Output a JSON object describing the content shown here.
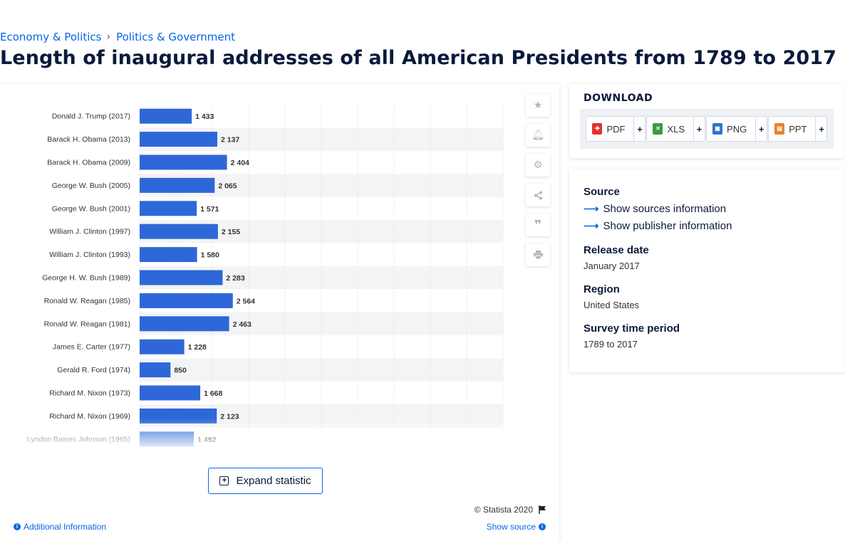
{
  "breadcrumb": {
    "items": [
      "Economy & Politics",
      "Politics & Government"
    ],
    "separator": "›"
  },
  "page_title": "Length of inaugural addresses of all American Presidents from 1789 to 2017",
  "toolbar": {
    "icons": [
      "star-icon",
      "bell-icon",
      "gear-icon",
      "share-icon",
      "quote-icon",
      "print-icon"
    ]
  },
  "chart_footer": {
    "expand_label": "Expand statistic",
    "copyright": "© Statista 2020",
    "additional_info": "Additional Information",
    "show_source": "Show source"
  },
  "download": {
    "title": "DOWNLOAD",
    "buttons": [
      {
        "label": "PDF",
        "plus": "+",
        "color": "#e0322d"
      },
      {
        "label": "XLS",
        "plus": "+",
        "color": "#3a9a3e"
      },
      {
        "label": "PNG",
        "plus": "+",
        "color": "#2d73c9"
      },
      {
        "label": "PPT",
        "plus": "+",
        "color": "#e8842c"
      }
    ]
  },
  "info": {
    "source_heading": "Source",
    "sources_link": "Show sources information",
    "publisher_link": "Show publisher information",
    "release_heading": "Release date",
    "release_value": "January 2017",
    "region_heading": "Region",
    "region_value": "United States",
    "period_heading": "Survey time period",
    "period_value": "1789 to 2017"
  },
  "chart_data": {
    "type": "bar",
    "orientation": "horizontal",
    "categories": [
      "Donald J. Trump (2017)",
      "Barack H. Obama (2013)",
      "Barack H. Obama (2009)",
      "George W. Bush (2005)",
      "George W. Bush (2001)",
      "William J. Clinton (1997)",
      "William J. Clinton (1993)",
      "George H. W. Bush (1989)",
      "Ronald W. Reagan (1985)",
      "Ronald W. Reagan (1981)",
      "James E. Carter (1977)",
      "Gerald R. Ford (1974)",
      "Richard M. Nixon (1973)",
      "Richard M. Nixon (1969)",
      "Lyndon Baines Johnson (1965)"
    ],
    "values": [
      1433,
      2137,
      2404,
      2065,
      1571,
      2155,
      1580,
      2283,
      2564,
      2463,
      1228,
      850,
      1668,
      2123,
      1492
    ],
    "value_labels": [
      "1 433",
      "2 137",
      "2 404",
      "2 065",
      "1 571",
      "2 155",
      "1 580",
      "2 283",
      "2 564",
      "2 463",
      "1 228",
      "850",
      "1 668",
      "2 123",
      "1 492"
    ],
    "xlim": [
      0,
      10000
    ],
    "bar_color": "#2e68d8",
    "grid": true
  }
}
